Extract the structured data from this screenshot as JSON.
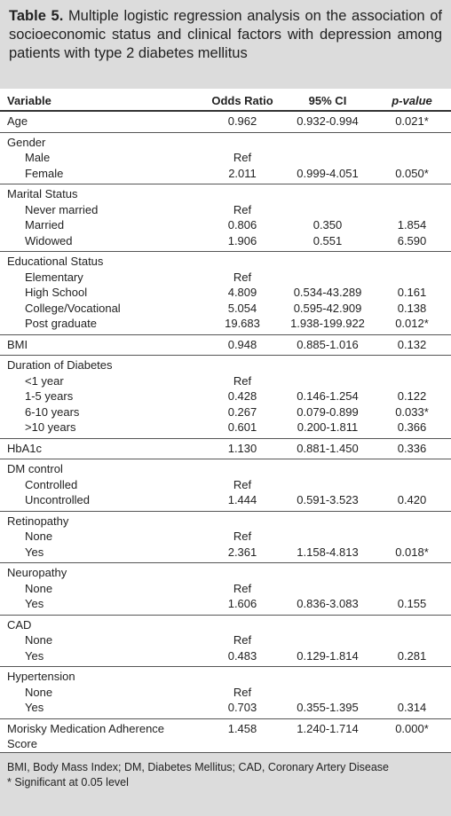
{
  "header": {
    "label": "Table 5.",
    "title": "Multiple logistic regression analysis on the association of socioeconomic status and clinical factors with depression among patients with type 2 diabetes mellitus"
  },
  "table": {
    "columns": [
      "Variable",
      "Odds Ratio",
      "95% CI",
      "p-value"
    ],
    "sections": [
      {
        "rows": [
          [
            "Age",
            "0.962",
            "0.932-0.994",
            "0.021*"
          ]
        ]
      },
      {
        "title": "Gender",
        "rows": [
          [
            "Male",
            "Ref",
            null,
            null
          ],
          [
            "Female",
            "2.011",
            "0.999-4.051",
            "0.050*"
          ]
        ]
      },
      {
        "title": "Marital Status",
        "rows": [
          [
            "Never married",
            "Ref",
            null,
            null
          ],
          [
            "Married",
            "0.806",
            "0.350",
            "1.854"
          ],
          [
            "Widowed",
            "1.906",
            "0.551",
            "6.590"
          ]
        ]
      },
      {
        "title": "Educational Status",
        "rows": [
          [
            "Elementary",
            "Ref",
            null,
            null
          ],
          [
            "High School",
            "4.809",
            "0.534-43.289",
            "0.161"
          ],
          [
            "College/Vocational",
            "5.054",
            "0.595-42.909",
            "0.138"
          ],
          [
            "Post graduate",
            "19.683",
            "1.938-199.922",
            "0.012*"
          ]
        ]
      },
      {
        "rows": [
          [
            "BMI",
            "0.948",
            "0.885-1.016",
            "0.132"
          ]
        ]
      },
      {
        "title": "Duration of Diabetes",
        "rows": [
          [
            "<1 year",
            "Ref",
            null,
            null
          ],
          [
            "1-5 years",
            "0.428",
            "0.146-1.254",
            "0.122"
          ],
          [
            "6-10 years",
            "0.267",
            "0.079-0.899",
            "0.033*"
          ],
          [
            ">10 years",
            "0.601",
            "0.200-1.811",
            "0.366"
          ]
        ]
      },
      {
        "rows": [
          [
            "HbA1c",
            "1.130",
            "0.881-1.450",
            "0.336"
          ]
        ]
      },
      {
        "title": "DM control",
        "rows": [
          [
            "Controlled",
            "Ref",
            null,
            null
          ],
          [
            "Uncontrolled",
            "1.444",
            "0.591-3.523",
            "0.420"
          ]
        ]
      },
      {
        "title": "Retinopathy",
        "rows": [
          [
            "None",
            "Ref",
            null,
            null
          ],
          [
            "Yes",
            "2.361",
            "1.158-4.813",
            "0.018*"
          ]
        ]
      },
      {
        "title": "Neuropathy",
        "rows": [
          [
            "None",
            "Ref",
            null,
            null
          ],
          [
            "Yes",
            "1.606",
            "0.836-3.083",
            "0.155"
          ]
        ]
      },
      {
        "title": "CAD",
        "rows": [
          [
            "None",
            "Ref",
            null,
            null
          ],
          [
            "Yes",
            "0.483",
            "0.129-1.814",
            "0.281"
          ]
        ]
      },
      {
        "title": "Hypertension",
        "rows": [
          [
            "None",
            "Ref",
            null,
            null
          ],
          [
            "Yes",
            "0.703",
            "0.355-1.395",
            "0.314"
          ]
        ]
      },
      {
        "rows": [
          [
            "Morisky Medication Adherence Score",
            "1.458",
            "1.240-1.714",
            "0.000*"
          ]
        ]
      }
    ]
  },
  "footer": {
    "notes": [
      "BMI, Body Mass Index; DM, Diabetes Mellitus; CAD, Coronary Artery Disease",
      "* Significant at 0.05 level"
    ]
  }
}
